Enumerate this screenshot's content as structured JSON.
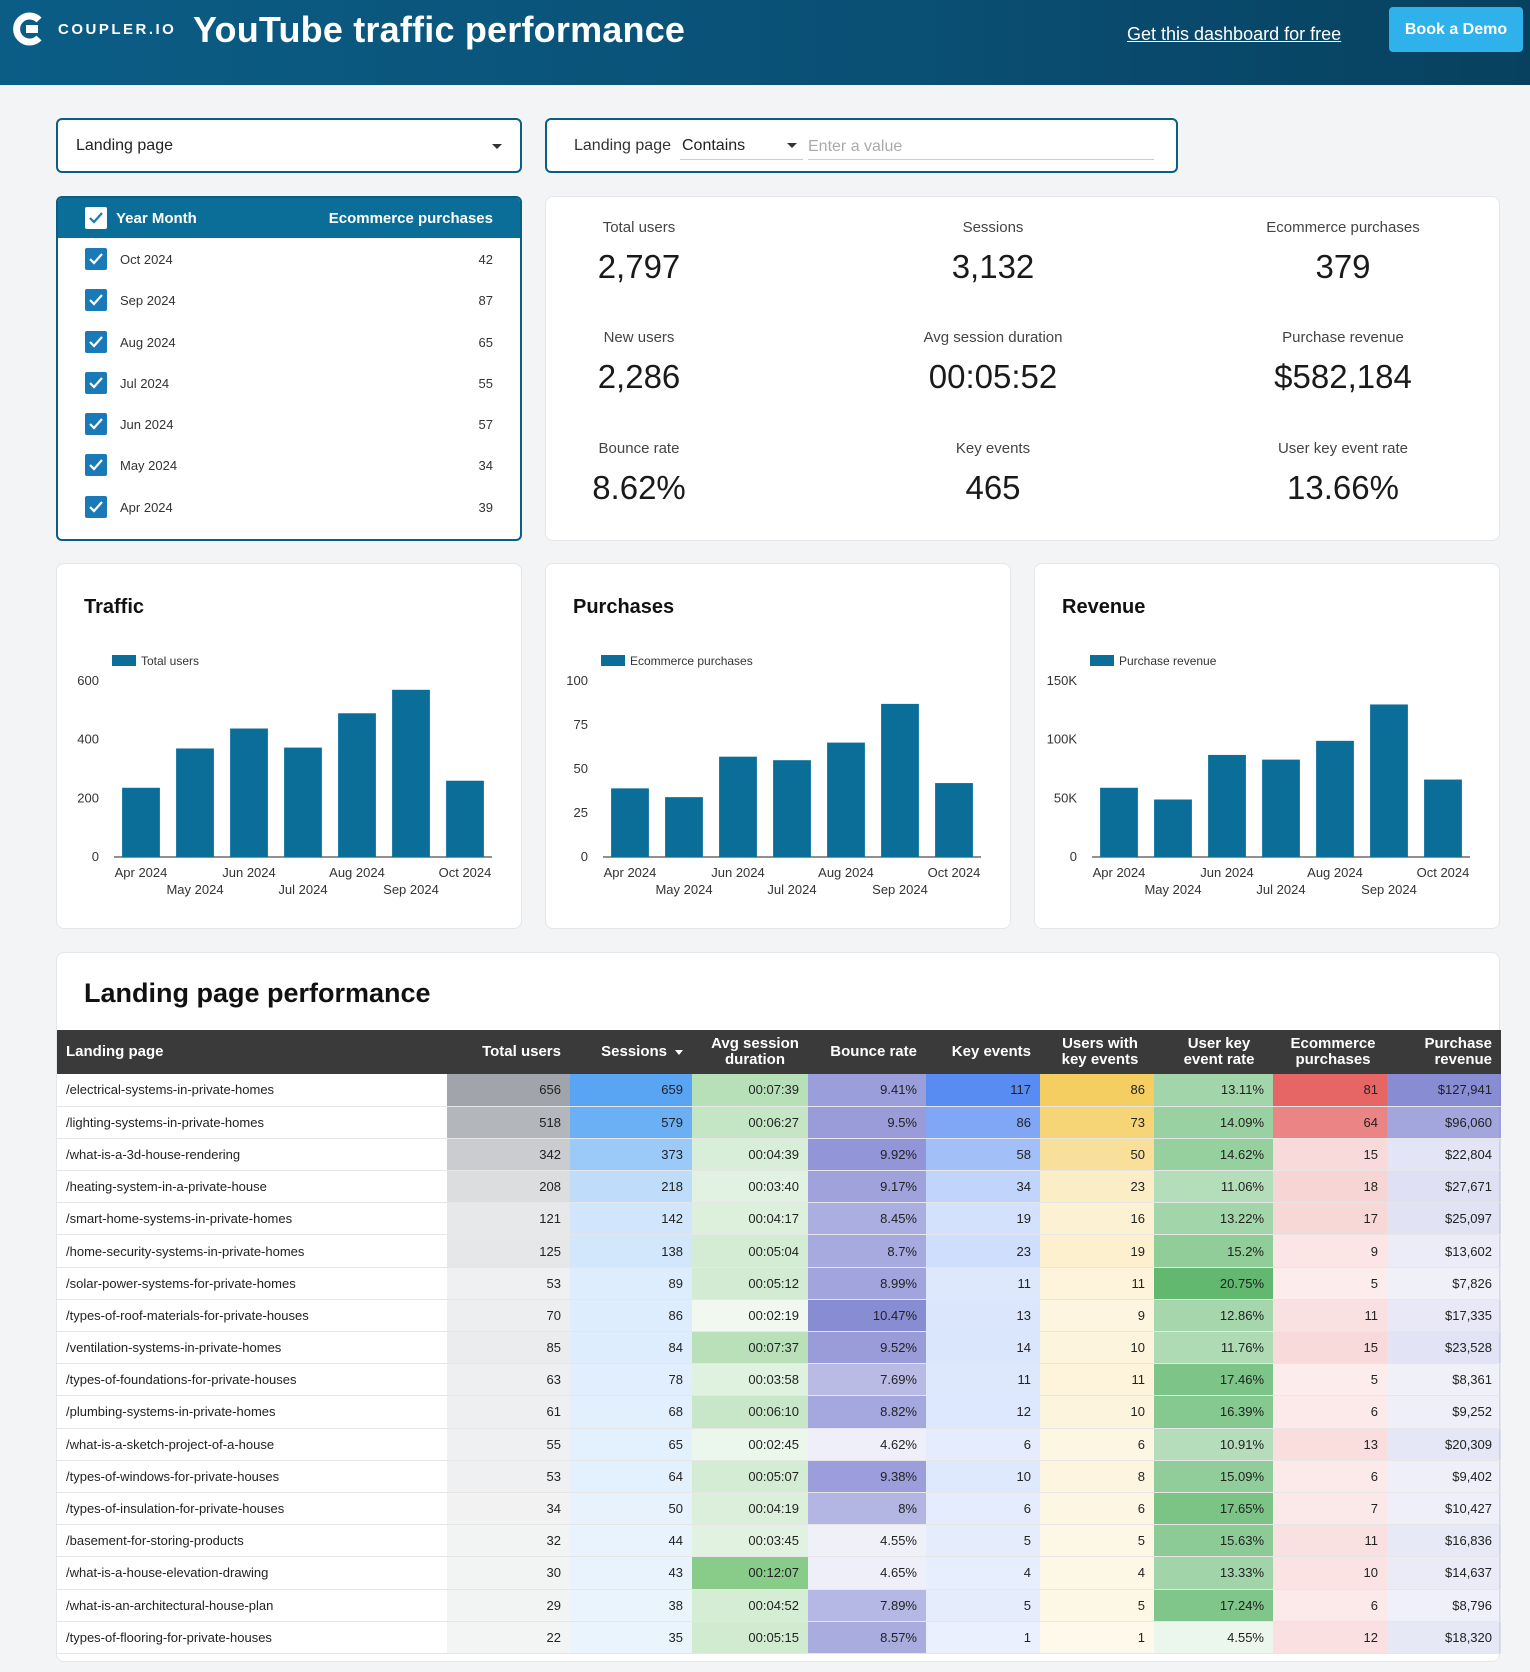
{
  "header": {
    "brand": "COUPLER.IO",
    "title": "YouTube traffic performance",
    "link_label": "Get this dashboard for free",
    "demo_label": "Book a Demo",
    "bg_color": "#0b5d86",
    "demo_color": "#2fb2ec"
  },
  "filters": {
    "dropdown_label": "Landing page",
    "filter_field": "Landing page",
    "filter_operator": "Contains",
    "filter_placeholder": "Enter a value"
  },
  "month_list": {
    "col1": "Year Month",
    "col2": "Ecommerce purchases",
    "rows": [
      {
        "label": "Oct 2024",
        "value": "42"
      },
      {
        "label": "Sep 2024",
        "value": "87"
      },
      {
        "label": "Aug 2024",
        "value": "65"
      },
      {
        "label": "Jul 2024",
        "value": "55"
      },
      {
        "label": "Jun 2024",
        "value": "57"
      },
      {
        "label": "May 2024",
        "value": "34"
      },
      {
        "label": "Apr 2024",
        "value": "39"
      }
    ]
  },
  "kpis": [
    {
      "label": "Total users",
      "value": "2,797"
    },
    {
      "label": "Sessions",
      "value": "3,132"
    },
    {
      "label": "Ecommerce purchases",
      "value": "379"
    },
    {
      "label": "New users",
      "value": "2,286"
    },
    {
      "label": "Avg session duration",
      "value": "00:05:52"
    },
    {
      "label": "Purchase revenue",
      "value": "$582,184"
    },
    {
      "label": "Bounce rate",
      "value": "8.62%"
    },
    {
      "label": "Key events",
      "value": "465"
    },
    {
      "label": "User key event rate",
      "value": "13.66%"
    }
  ],
  "chart_data": [
    {
      "type": "bar",
      "title": "Traffic",
      "legend": "Total users",
      "categories": [
        "Apr 2024",
        "May 2024",
        "Jun 2024",
        "Jul 2024",
        "Aug 2024",
        "Sep 2024",
        "Oct 2024"
      ],
      "values": [
        236,
        370,
        438,
        373,
        490,
        570,
        260
      ],
      "yticks": [
        "0",
        "200",
        "400",
        "600"
      ],
      "ylim": [
        0,
        600
      ],
      "color": "#0b6e99"
    },
    {
      "type": "bar",
      "title": "Purchases",
      "legend": "Ecommerce purchases",
      "categories": [
        "Apr 2024",
        "May 2024",
        "Jun 2024",
        "Jul 2024",
        "Aug 2024",
        "Sep 2024",
        "Oct 2024"
      ],
      "values": [
        39,
        34,
        57,
        55,
        65,
        87,
        42
      ],
      "yticks": [
        "0",
        "25",
        "50",
        "75",
        "100"
      ],
      "ylim": [
        0,
        100
      ],
      "color": "#0b6e99"
    },
    {
      "type": "bar",
      "title": "Revenue",
      "legend": "Purchase revenue",
      "categories": [
        "Apr 2024",
        "May 2024",
        "Jun 2024",
        "Jul 2024",
        "Aug 2024",
        "Sep 2024",
        "Oct 2024"
      ],
      "values": [
        59000,
        49000,
        87000,
        83000,
        99000,
        130000,
        66000
      ],
      "yticks": [
        "0",
        "50K",
        "100K",
        "150K"
      ],
      "ylim": [
        0,
        150000
      ],
      "color": "#0b6e99"
    }
  ],
  "table": {
    "title": "Landing page performance",
    "columns": [
      "Landing page",
      "Total users",
      "Sessions",
      "Avg session duration",
      "Bounce rate",
      "Key events",
      "Users with key events",
      "User key event rate",
      "Ecommerce purchases",
      "Purchase revenue"
    ],
    "rows": [
      [
        "/electrical-systems-in-private-homes",
        "656",
        "659",
        "00:07:39",
        "9.41%",
        "117",
        "86",
        "13.11%",
        "81",
        "$127,941"
      ],
      [
        "/lighting-systems-in-private-homes",
        "518",
        "579",
        "00:06:27",
        "9.5%",
        "86",
        "73",
        "14.09%",
        "64",
        "$96,060"
      ],
      [
        "/what-is-a-3d-house-rendering",
        "342",
        "373",
        "00:04:39",
        "9.92%",
        "58",
        "50",
        "14.62%",
        "15",
        "$22,804"
      ],
      [
        "/heating-system-in-a-private-house",
        "208",
        "218",
        "00:03:40",
        "9.17%",
        "34",
        "23",
        "11.06%",
        "18",
        "$27,671"
      ],
      [
        "/smart-home-systems-in-private-homes",
        "121",
        "142",
        "00:04:17",
        "8.45%",
        "19",
        "16",
        "13.22%",
        "17",
        "$25,097"
      ],
      [
        "/home-security-systems-in-private-homes",
        "125",
        "138",
        "00:05:04",
        "8.7%",
        "23",
        "19",
        "15.2%",
        "9",
        "$13,602"
      ],
      [
        "/solar-power-systems-for-private-homes",
        "53",
        "89",
        "00:05:12",
        "8.99%",
        "11",
        "11",
        "20.75%",
        "5",
        "$7,826"
      ],
      [
        "/types-of-roof-materials-for-private-houses",
        "70",
        "86",
        "00:02:19",
        "10.47%",
        "13",
        "9",
        "12.86%",
        "11",
        "$17,335"
      ],
      [
        "/ventilation-systems-in-private-homes",
        "85",
        "84",
        "00:07:37",
        "9.52%",
        "14",
        "10",
        "11.76%",
        "15",
        "$23,528"
      ],
      [
        "/types-of-foundations-for-private-houses",
        "63",
        "78",
        "00:03:58",
        "7.69%",
        "11",
        "11",
        "17.46%",
        "5",
        "$8,361"
      ],
      [
        "/plumbing-systems-in-private-homes",
        "61",
        "68",
        "00:06:10",
        "8.82%",
        "12",
        "10",
        "16.39%",
        "6",
        "$9,252"
      ],
      [
        "/what-is-a-sketch-project-of-a-house",
        "55",
        "65",
        "00:02:45",
        "4.62%",
        "6",
        "6",
        "10.91%",
        "13",
        "$20,309"
      ],
      [
        "/types-of-windows-for-private-houses",
        "53",
        "64",
        "00:05:07",
        "9.38%",
        "10",
        "8",
        "15.09%",
        "6",
        "$9,402"
      ],
      [
        "/types-of-insulation-for-private-houses",
        "34",
        "50",
        "00:04:19",
        "8%",
        "6",
        "6",
        "17.65%",
        "7",
        "$10,427"
      ],
      [
        "/basement-for-storing-products",
        "32",
        "44",
        "00:03:45",
        "4.55%",
        "5",
        "5",
        "15.63%",
        "11",
        "$16,836"
      ],
      [
        "/what-is-a-house-elevation-drawing",
        "30",
        "43",
        "00:12:07",
        "4.65%",
        "4",
        "4",
        "13.33%",
        "10",
        "$14,637"
      ],
      [
        "/what-is-an-architectural-house-plan",
        "29",
        "38",
        "00:04:52",
        "7.89%",
        "5",
        "5",
        "17.24%",
        "6",
        "$8,796"
      ],
      [
        "/types-of-flooring-for-private-houses",
        "22",
        "35",
        "00:05:15",
        "8.57%",
        "1",
        "1",
        "4.55%",
        "12",
        "$18,320"
      ]
    ],
    "column_colors": [
      "",
      "#8a8f96",
      "#2f8ff0",
      "#6cbf6c",
      "#6a6fc8",
      "#2f6ff0",
      "#f2c23a",
      "#3aa64a",
      "#e04040",
      "#6a6fc8"
    ]
  }
}
